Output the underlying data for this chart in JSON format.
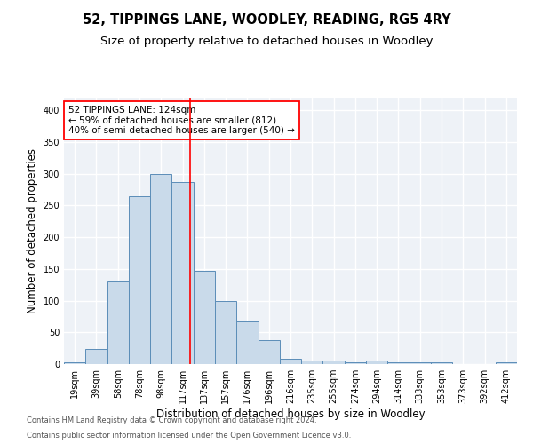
{
  "title1": "52, TIPPINGS LANE, WOODLEY, READING, RG5 4RY",
  "title2": "Size of property relative to detached houses in Woodley",
  "xlabel": "Distribution of detached houses by size in Woodley",
  "ylabel": "Number of detached properties",
  "bar_labels": [
    "19sqm",
    "39sqm",
    "58sqm",
    "78sqm",
    "98sqm",
    "117sqm",
    "137sqm",
    "157sqm",
    "176sqm",
    "196sqm",
    "216sqm",
    "235sqm",
    "255sqm",
    "274sqm",
    "294sqm",
    "314sqm",
    "333sqm",
    "353sqm",
    "373sqm",
    "392sqm",
    "412sqm"
  ],
  "bar_values": [
    3,
    24,
    130,
    265,
    300,
    287,
    147,
    99,
    67,
    38,
    8,
    5,
    5,
    3,
    5,
    3,
    3,
    3,
    0,
    0,
    3
  ],
  "bar_color": "#c9daea",
  "bar_edge_color": "#5b8db8",
  "vline_color": "red",
  "annotation_line1": "52 TIPPINGS LANE: 124sqm",
  "annotation_line2": "← 59% of detached houses are smaller (812)",
  "annotation_line3": "40% of semi-detached houses are larger (540) →",
  "annotation_box_color": "white",
  "annotation_box_edge_color": "red",
  "ylim": [
    0,
    420
  ],
  "yticks": [
    0,
    50,
    100,
    150,
    200,
    250,
    300,
    350,
    400
  ],
  "bg_color": "#eef2f7",
  "grid_color": "white",
  "footnote1": "Contains HM Land Registry data © Crown copyright and database right 2024.",
  "footnote2": "Contains public sector information licensed under the Open Government Licence v3.0.",
  "title1_fontsize": 10.5,
  "title2_fontsize": 9.5,
  "xlabel_fontsize": 8.5,
  "ylabel_fontsize": 8.5,
  "tick_fontsize": 7,
  "annotation_fontsize": 7.5,
  "footnote_fontsize": 6
}
